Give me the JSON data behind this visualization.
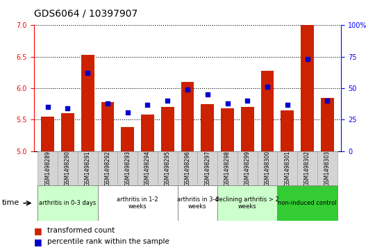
{
  "title": "GDS6064 / 10397907",
  "samples": [
    "GSM1498289",
    "GSM1498290",
    "GSM1498291",
    "GSM1498292",
    "GSM1498293",
    "GSM1498294",
    "GSM1498295",
    "GSM1498296",
    "GSM1498297",
    "GSM1498298",
    "GSM1498299",
    "GSM1498300",
    "GSM1498301",
    "GSM1498302",
    "GSM1498303"
  ],
  "transformed_count": [
    5.55,
    5.6,
    6.53,
    5.78,
    5.38,
    5.58,
    5.7,
    6.1,
    5.75,
    5.68,
    5.7,
    6.28,
    5.65,
    7.0,
    5.85
  ],
  "percentile_rank": [
    35,
    34,
    62,
    38,
    31,
    37,
    40,
    49,
    45,
    38,
    40,
    51,
    37,
    73,
    40
  ],
  "ylim_left": [
    5,
    7
  ],
  "ylim_right": [
    0,
    100
  ],
  "yticks_left": [
    5,
    5.5,
    6,
    6.5,
    7
  ],
  "yticks_right": [
    0,
    25,
    50,
    75,
    100
  ],
  "bar_color": "#cc2200",
  "dot_color": "#0000cc",
  "groups": [
    {
      "label": "arthritis in 0-3 days",
      "indices": [
        0,
        1,
        2
      ],
      "color": "#ccffcc"
    },
    {
      "label": "arthritis in 1-2\nweeks",
      "indices": [
        3,
        4,
        5,
        6
      ],
      "color": "#ffffff"
    },
    {
      "label": "arthritis in 3-4\nweeks",
      "indices": [
        7,
        8
      ],
      "color": "#ffffff"
    },
    {
      "label": "declining arthritis > 2\nweeks",
      "indices": [
        9,
        10,
        11
      ],
      "color": "#ccffcc"
    },
    {
      "label": "non-induced control",
      "indices": [
        12,
        13,
        14
      ],
      "color": "#33cc33"
    }
  ],
  "legend_red_label": "transformed count",
  "legend_blue_label": "percentile rank within the sample",
  "xlabel": "time",
  "title_fontsize": 10,
  "tick_fontsize": 7,
  "bar_baseline": 5
}
